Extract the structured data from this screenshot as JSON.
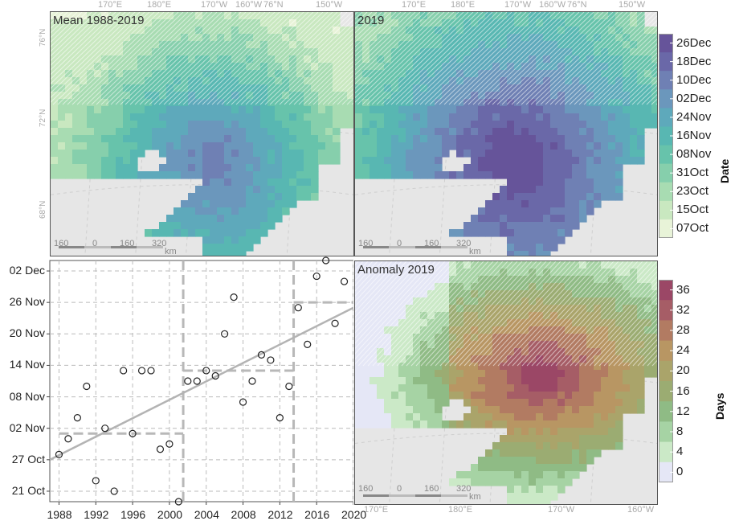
{
  "maps": {
    "mean": {
      "title": "Mean 1988-2019"
    },
    "y2019": {
      "title": "2019"
    },
    "anomaly": {
      "title": "Anomaly 2019"
    },
    "lon_top_a": [
      "170°E",
      "180°E",
      "170°W",
      "160°W",
      "76°N",
      "150°W"
    ],
    "lon_top_b": [
      "170°E",
      "180°E",
      "170°W",
      "160°W",
      "76°N",
      "150°W"
    ],
    "lon_bottom": [
      "170°E",
      "180°E",
      "170°W",
      "160°W"
    ],
    "lat_labels": [
      "76°N",
      "72°N",
      "68°N"
    ],
    "scalebar": [
      "160",
      "0",
      "160",
      "320",
      "km"
    ]
  },
  "legend_date": {
    "title": "Date",
    "ticks": [
      "26Dec",
      "18Dec",
      "10Dec",
      "02Dec",
      "24Nov",
      "16Nov",
      "08Nov",
      "31Oct",
      "23Oct",
      "15Oct",
      "07Oct"
    ],
    "colors": [
      "#66549a",
      "#6a68a8",
      "#6f80b4",
      "#6b97bc",
      "#5ea9bb",
      "#58b7b2",
      "#67c3ab",
      "#86cfac",
      "#a8dcb2",
      "#c9e8c0",
      "#e8f3d8"
    ]
  },
  "legend_days": {
    "title": "Days",
    "ticks": [
      "36",
      "32",
      "28",
      "24",
      "20",
      "16",
      "12",
      "8",
      "4",
      "0"
    ],
    "colors": [
      "#9b4766",
      "#a65d66",
      "#b27b62",
      "#b89663",
      "#aaa46a",
      "#9bac72",
      "#8fbb85",
      "#a6d3a4",
      "#cbe9c7",
      "#e5e7f6"
    ]
  },
  "chart_data": {
    "type": "scatter",
    "x_ticks": [
      "1988",
      "1992",
      "1996",
      "2000",
      "2004",
      "2008",
      "2012",
      "2016",
      "2020"
    ],
    "y_ticks": [
      "02 Dec",
      "26 Nov",
      "20 Nov",
      "14 Nov",
      "08 Nov",
      "02 Nov",
      "27 Oct",
      "21 Oct"
    ],
    "xlim": [
      1987,
      2020
    ],
    "ylim_day_of_year": [
      292,
      338
    ],
    "points": [
      {
        "x": 1988,
        "y": "28 Oct"
      },
      {
        "x": 1989,
        "y": "31 Oct"
      },
      {
        "x": 1990,
        "y": "4 Nov"
      },
      {
        "x": 1991,
        "y": "10 Nov"
      },
      {
        "x": 1992,
        "y": "23 Oct"
      },
      {
        "x": 1993,
        "y": "2 Nov"
      },
      {
        "x": 1994,
        "y": "21 Oct"
      },
      {
        "x": 1995,
        "y": "13 Nov"
      },
      {
        "x": 1996,
        "y": "1 Nov"
      },
      {
        "x": 1997,
        "y": "13 Nov"
      },
      {
        "x": 1998,
        "y": "13 Nov"
      },
      {
        "x": 1999,
        "y": "29 Oct"
      },
      {
        "x": 2000,
        "y": "30 Oct"
      },
      {
        "x": 2001,
        "y": "19 Oct"
      },
      {
        "x": 2002,
        "y": "11 Nov"
      },
      {
        "x": 2003,
        "y": "11 Nov"
      },
      {
        "x": 2004,
        "y": "13 Nov"
      },
      {
        "x": 2005,
        "y": "12 Nov"
      },
      {
        "x": 2006,
        "y": "20 Nov"
      },
      {
        "x": 2007,
        "y": "27 Nov"
      },
      {
        "x": 2008,
        "y": "7 Nov"
      },
      {
        "x": 2009,
        "y": "11 Nov"
      },
      {
        "x": 2010,
        "y": "16 Nov"
      },
      {
        "x": 2011,
        "y": "15 Nov"
      },
      {
        "x": 2012,
        "y": "4 Nov"
      },
      {
        "x": 2013,
        "y": "10 Nov"
      },
      {
        "x": 2014,
        "y": "25 Nov"
      },
      {
        "x": 2015,
        "y": "18 Nov"
      },
      {
        "x": 2016,
        "y": "1 Dec"
      },
      {
        "x": 2017,
        "y": "4 Dec"
      },
      {
        "x": 2018,
        "y": "22 Nov"
      },
      {
        "x": 2019,
        "y": "30 Nov"
      }
    ],
    "trend": {
      "start": {
        "x": 1987,
        "y": "27 Oct"
      },
      "end": {
        "x": 2020,
        "y": "25 Nov"
      }
    },
    "regime_means": [
      {
        "x_from": 1988,
        "x_to": 2001.5,
        "y": "1 Nov"
      },
      {
        "x_from": 2001.5,
        "x_to": 2013.5,
        "y": "13 Nov"
      },
      {
        "x_from": 2013.5,
        "x_to": 2020,
        "y": "26 Nov"
      }
    ],
    "breakpoints_x": [
      2001.5,
      2013.5
    ],
    "grid": true
  }
}
